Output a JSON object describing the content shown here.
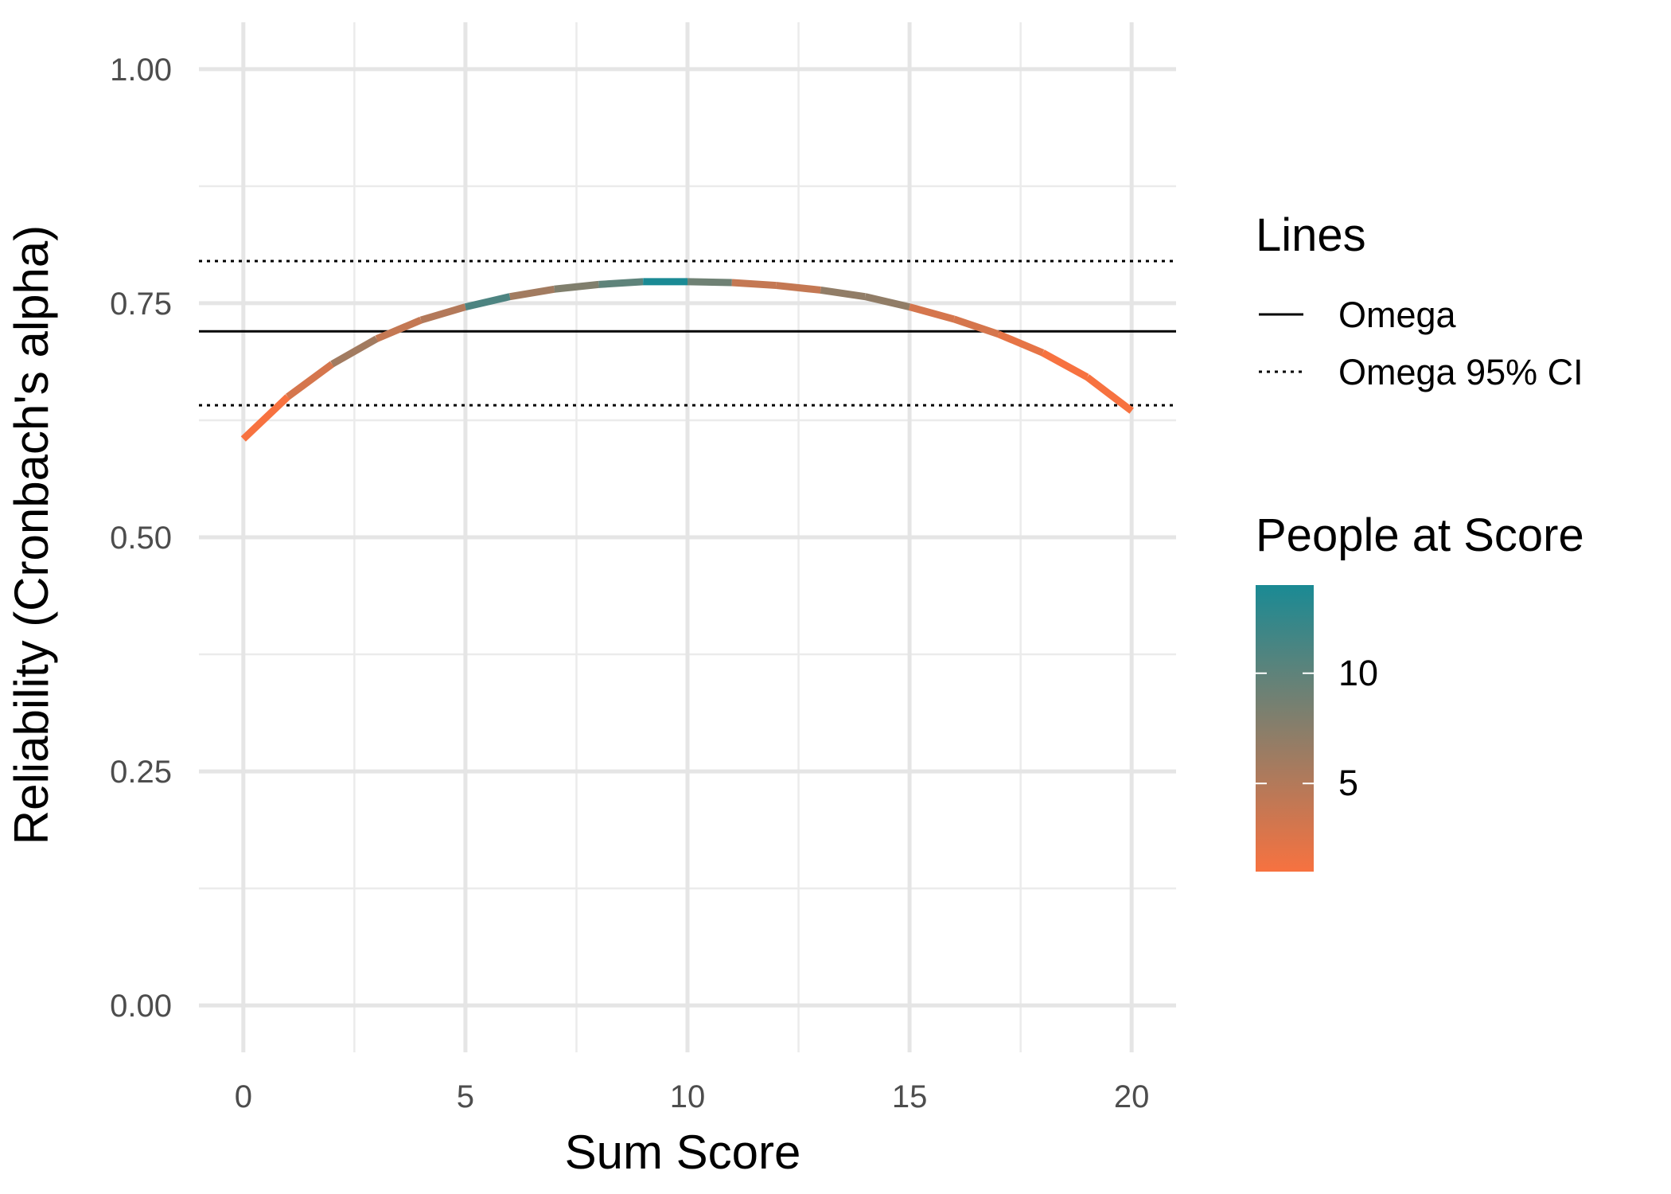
{
  "chart_data": {
    "type": "line",
    "xlabel": "Sum Score",
    "ylabel": "Reliability (Cronbach's alpha)",
    "xlim": [
      -1,
      21
    ],
    "ylim": [
      -0.05,
      1.05
    ],
    "x_ticks": [
      0,
      5,
      10,
      15,
      20
    ],
    "x_tick_labels": [
      "0",
      "5",
      "10",
      "15",
      "20"
    ],
    "y_ticks": [
      0,
      0.25,
      0.5,
      0.75,
      1
    ],
    "y_tick_labels": [
      "0.00",
      "0.25",
      "0.50",
      "0.75",
      "1.00"
    ],
    "grid": true,
    "series": {
      "x": [
        0,
        1,
        2,
        3,
        4,
        5,
        6,
        7,
        8,
        9,
        10,
        11,
        12,
        13,
        14,
        15,
        16,
        17,
        18,
        19,
        20
      ],
      "y": [
        0.605,
        0.65,
        0.685,
        0.712,
        0.732,
        0.746,
        0.757,
        0.765,
        0.77,
        0.773,
        0.773,
        0.772,
        0.769,
        0.764,
        0.757,
        0.746,
        0.733,
        0.717,
        0.697,
        0.671,
        0.635
      ],
      "people_at_score": [
        1,
        3,
        6,
        4,
        5,
        11,
        6,
        8,
        10,
        14,
        9,
        4,
        4,
        7,
        7,
        3,
        3,
        2,
        1,
        1,
        1
      ]
    },
    "reference_lines": [
      {
        "name": "Omega",
        "y": 0.72,
        "style": "solid"
      },
      {
        "name": "Omega 95% CI",
        "y": 0.641,
        "style": "dotted"
      },
      {
        "name": "Omega 95% CI",
        "y": 0.795,
        "style": "dotted"
      }
    ],
    "legend": {
      "lines_title": "Lines",
      "lines_entries": [
        "Omega",
        "Omega 95% CI"
      ],
      "color_title": "People at Score",
      "color_ticks": [
        5,
        10
      ],
      "color_tick_labels": [
        "5",
        "10"
      ],
      "color_range": [
        1,
        14
      ],
      "color_low": "#f77240",
      "color_high": "#1a8a94",
      "placement": "right"
    }
  }
}
